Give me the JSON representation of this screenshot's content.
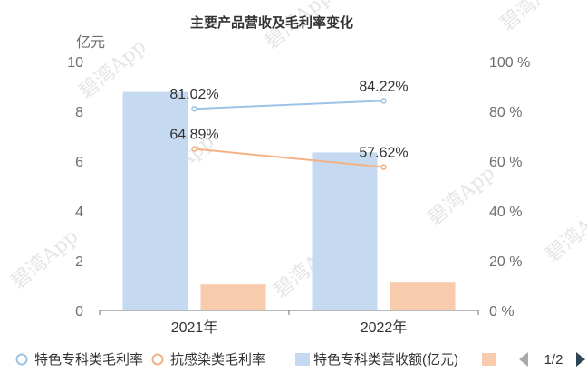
{
  "chart_data": {
    "type": "bar",
    "title": "主要产品营收及毛利率变化",
    "categories": [
      "2021年",
      "2022年"
    ],
    "y_left": {
      "unit": "亿元",
      "min": 0,
      "max": 10,
      "ticks": [
        "0",
        "2",
        "4",
        "6",
        "8",
        "10"
      ]
    },
    "y_right": {
      "min": 0,
      "max": 100,
      "ticks": [
        "0 %",
        "20 %",
        "40 %",
        "60 %",
        "80 %",
        "100 %"
      ]
    },
    "grid": false,
    "legend_position": "bottom",
    "series": [
      {
        "name": "特色专科类营收额(亿元)",
        "kind": "bar",
        "axis": "left",
        "color": "#c5d9f1",
        "values": [
          8.78,
          6.35
        ]
      },
      {
        "name": "",
        "kind": "bar",
        "axis": "left",
        "color": "#f8cbad",
        "values": [
          1.05,
          1.12
        ]
      },
      {
        "name": "特色专科类毛利率",
        "kind": "line",
        "axis": "right",
        "color": "#9dc3e6",
        "values": [
          81.02,
          84.22
        ],
        "labels": [
          "81.02%",
          "84.22%"
        ]
      },
      {
        "name": "抗感染类毛利率",
        "kind": "line",
        "axis": "right",
        "color": "#f4b183",
        "values": [
          64.89,
          57.62
        ],
        "labels": [
          "64.89%",
          "57.62%"
        ]
      }
    ],
    "legend": [
      {
        "name": "特色专科类毛利率",
        "symbol": "circle",
        "color": "#9dc3e6"
      },
      {
        "name": "抗感染类毛利率",
        "symbol": "circle",
        "color": "#f4b183"
      },
      {
        "name": "特色专科类营收额(亿元)",
        "symbol": "rect",
        "color": "#c5d9f1"
      },
      {
        "name": "",
        "symbol": "rect",
        "color": "#f8cbad"
      }
    ],
    "pager": {
      "text": "1/2",
      "prev_color": "#aaaaaa",
      "next_color": "#2f4554"
    }
  },
  "watermark": "碧湾App"
}
